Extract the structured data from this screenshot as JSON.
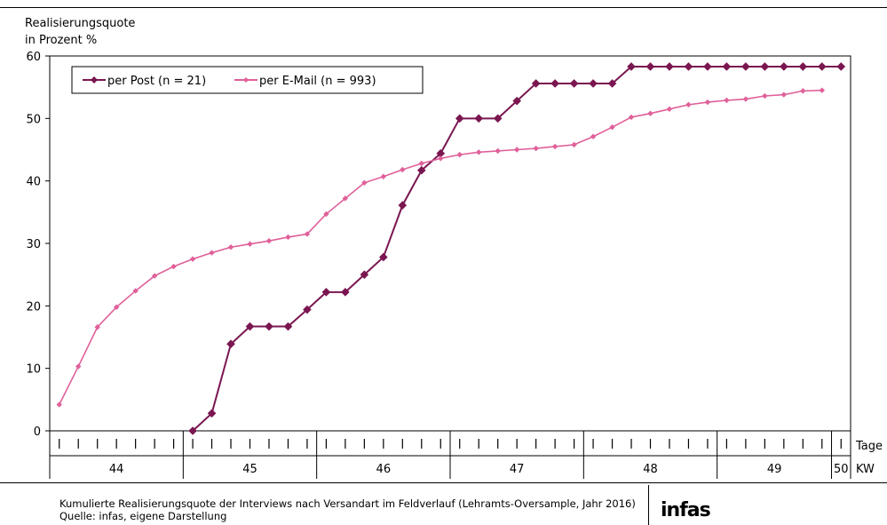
{
  "chart_data": {
    "type": "line",
    "ylabel_lines": [
      "Realisierungsquote",
      "in Prozent %"
    ],
    "ylim": [
      0,
      60
    ],
    "yticks": [
      0,
      10,
      20,
      30,
      40,
      50,
      60
    ],
    "xlabel_days": "Tage",
    "xlabel_weeks": "KW",
    "weeks": [
      {
        "label": "44",
        "days": 7
      },
      {
        "label": "45",
        "days": 7
      },
      {
        "label": "46",
        "days": 7
      },
      {
        "label": "47",
        "days": 7
      },
      {
        "label": "48",
        "days": 7
      },
      {
        "label": "49",
        "days": 6
      },
      {
        "label": "50",
        "days": 1
      }
    ],
    "legend_position": "top-left",
    "series": [
      {
        "name": "per Post (n = 21)",
        "color": "#7a1650",
        "marker": "diamond-large",
        "start_day": 7,
        "values": [
          0,
          2.8,
          13.9,
          16.7,
          16.7,
          16.7,
          19.4,
          22.2,
          22.2,
          25.0,
          27.8,
          36.1,
          41.7,
          44.4,
          50.0,
          50.0,
          50.0,
          52.8,
          55.6,
          55.6,
          55.6,
          55.6,
          55.6,
          58.3,
          58.3,
          58.3,
          58.3,
          58.3,
          58.3,
          58.3,
          58.3,
          58.3,
          58.3,
          58.3,
          58.3
        ]
      },
      {
        "name": "per E-Mail (n = 993)",
        "color": "#e0609a",
        "marker": "diamond-small",
        "start_day": 0,
        "values": [
          4.2,
          10.3,
          16.6,
          19.8,
          22.4,
          24.8,
          26.3,
          27.5,
          28.5,
          29.4,
          29.9,
          30.4,
          31.0,
          31.5,
          34.7,
          37.2,
          39.7,
          40.7,
          41.8,
          42.8,
          43.6,
          44.2,
          44.6,
          44.8,
          45.0,
          45.2,
          45.5,
          45.8,
          47.1,
          48.6,
          50.2,
          50.8,
          51.5,
          52.2,
          52.6,
          52.9,
          53.1,
          53.6,
          53.8,
          54.4,
          54.5
        ]
      }
    ]
  },
  "footer": {
    "caption": "Kumulierte Realisierungsquote der Interviews nach Versandart im Feldverlauf (Lehramts-Oversample, Jahr 2016)",
    "source": "Quelle: infas, eigene Darstellung",
    "logo": "infas"
  }
}
